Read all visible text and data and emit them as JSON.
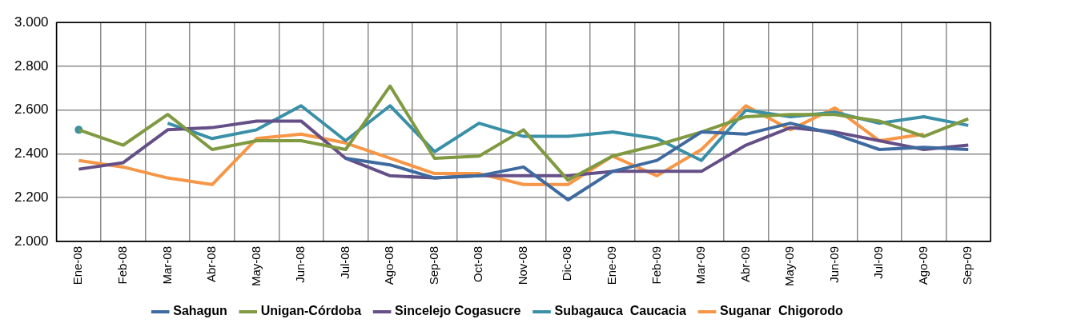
{
  "chart_data": {
    "type": "line",
    "categories": [
      "Ene-08",
      "Feb-08",
      "Mar-08",
      "Abr-08",
      "May-08",
      "Jun-08",
      "Jul-08",
      "Ago-08",
      "Sep-08",
      "Oct-08",
      "Nov-08",
      "Dic-08",
      "Ene-09",
      "Feb-09",
      "Mar-09",
      "Abr-09",
      "May-09",
      "Jun-09",
      "Jul-09",
      "Ago-09",
      "Sep-09"
    ],
    "series": [
      {
        "name": "Sahagun",
        "color": "#3f6aa0",
        "values": [
          null,
          null,
          null,
          null,
          null,
          null,
          2.38,
          2.35,
          2.29,
          2.3,
          2.34,
          2.19,
          2.32,
          2.37,
          2.5,
          2.49,
          2.54,
          2.49,
          2.42,
          2.43,
          2.42
        ]
      },
      {
        "name": "Unigan-Córdoba",
        "color": "#7f9a41",
        "values": [
          2.51,
          2.44,
          2.58,
          2.42,
          2.46,
          2.46,
          2.42,
          2.71,
          2.38,
          2.39,
          2.51,
          2.28,
          2.39,
          2.44,
          2.5,
          2.57,
          2.58,
          2.58,
          2.55,
          2.48,
          2.56
        ]
      },
      {
        "name": "Sincelejo Cogasucre",
        "color": "#654f87",
        "values": [
          2.33,
          2.36,
          2.51,
          2.52,
          2.55,
          2.55,
          2.38,
          2.3,
          2.29,
          2.3,
          2.3,
          2.3,
          2.32,
          2.32,
          2.32,
          2.44,
          2.52,
          2.5,
          2.46,
          2.42,
          2.44
        ]
      },
      {
        "name": "Subagauca  Caucacia",
        "color": "#3a90a7",
        "values": [
          2.51,
          null,
          2.54,
          2.47,
          2.51,
          2.62,
          2.46,
          2.62,
          2.41,
          2.54,
          2.48,
          2.48,
          2.5,
          2.47,
          2.37,
          2.6,
          2.57,
          2.59,
          2.54,
          2.57,
          2.53
        ]
      },
      {
        "name": "Suganar  Chigorodo",
        "color": "#f79646",
        "values": [
          2.37,
          2.34,
          2.29,
          2.26,
          2.47,
          2.49,
          2.45,
          2.38,
          2.31,
          2.31,
          2.26,
          2.26,
          2.39,
          2.3,
          2.42,
          2.62,
          2.51,
          2.61,
          2.46,
          2.49,
          null
        ]
      }
    ],
    "ylim": [
      2,
      3
    ],
    "yticks": [
      {
        "value": 2,
        "label": "2.000"
      },
      {
        "value": 2.2,
        "label": "2.200"
      },
      {
        "value": 2.4,
        "label": "2.400"
      },
      {
        "value": 2.6,
        "label": "2.600"
      },
      {
        "value": 2.8,
        "label": "2.800"
      },
      {
        "value": 3,
        "label": "3.000"
      }
    ],
    "grid": true,
    "legend": "bottom",
    "marker": "none",
    "line_style": "solid"
  }
}
